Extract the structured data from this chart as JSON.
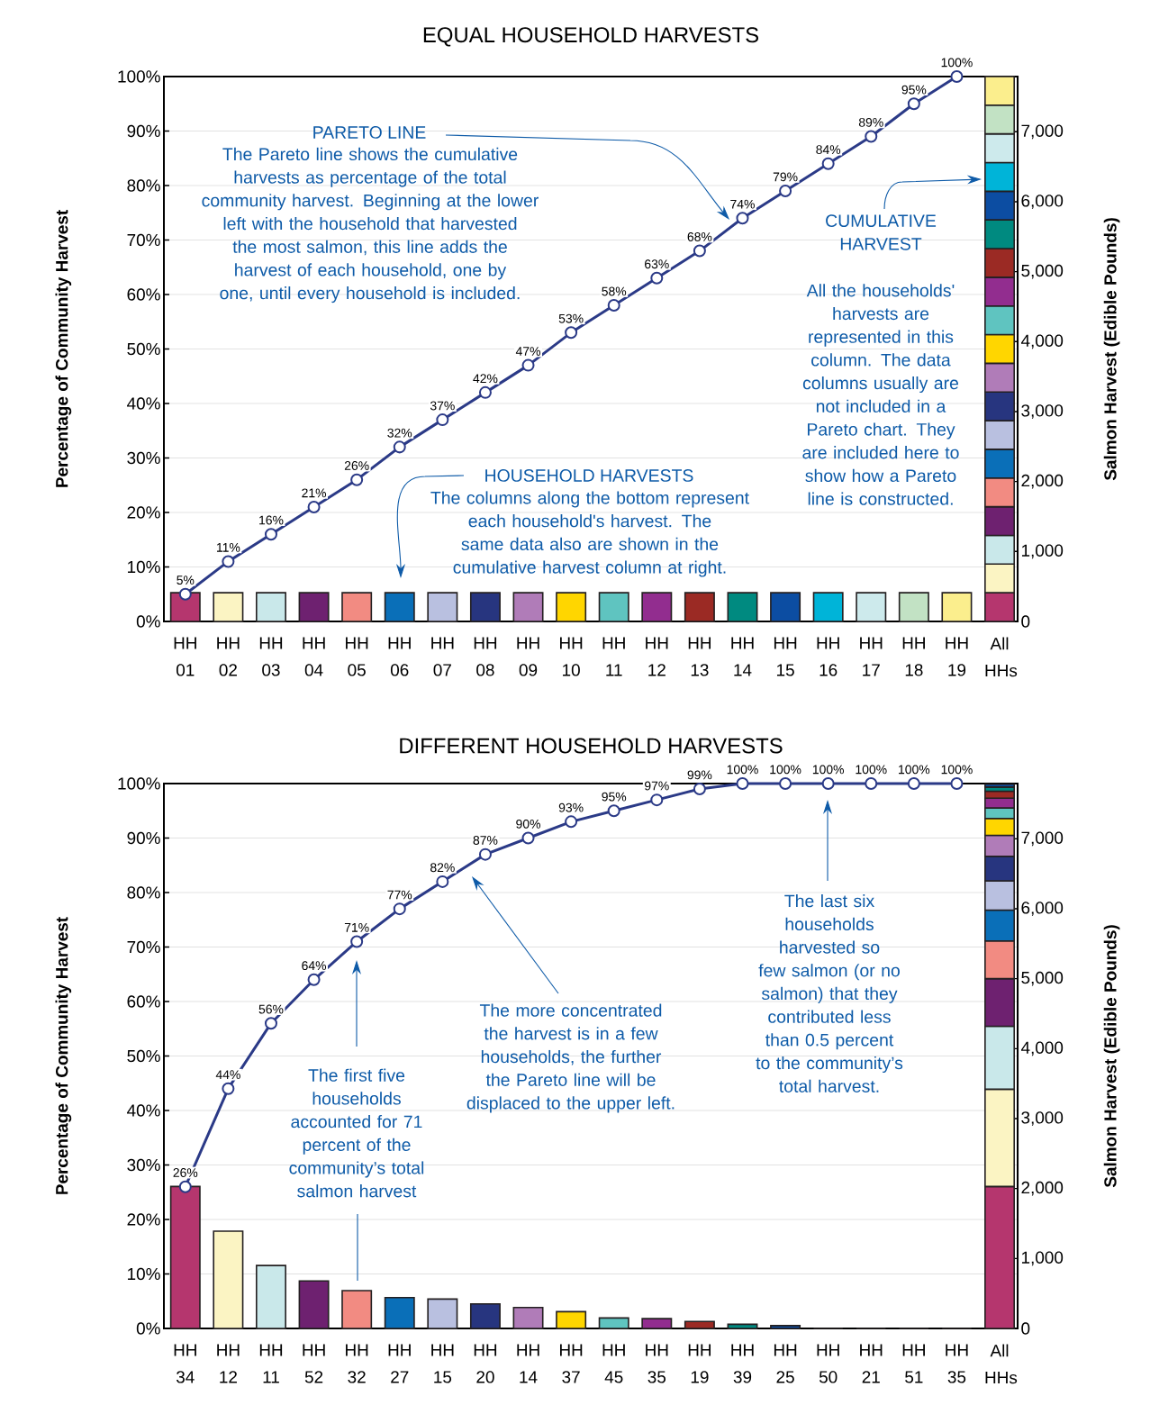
{
  "chart_data": [
    {
      "type": "bar",
      "title": "EQUAL HOUSEHOLD HARVESTS",
      "ylabel": "Percentage of Community Harvest",
      "y2label": "Salmon Harvest (Edible Pounds)",
      "categories": [
        "HH 01",
        "HH 02",
        "HH 03",
        "HH 04",
        "HH 05",
        "HH 06",
        "HH 07",
        "HH 08",
        "HH 09",
        "HH 10",
        "HH 11",
        "HH 12",
        "HH 13",
        "HH 14",
        "HH 15",
        "HH 16",
        "HH 17",
        "HH 18",
        "HH 19",
        "All HHs"
      ],
      "ylim": [
        0,
        100
      ],
      "yticks": [
        {
          "value": 0,
          "label": "0%"
        },
        {
          "value": 10,
          "label": "10%"
        },
        {
          "value": 20,
          "label": "20%"
        },
        {
          "value": 30,
          "label": "30%"
        },
        {
          "value": 40,
          "label": "40%"
        },
        {
          "value": 50,
          "label": "50%"
        },
        {
          "value": 60,
          "label": "60%"
        },
        {
          "value": 70,
          "label": "70%"
        },
        {
          "value": 80,
          "label": "80%"
        },
        {
          "value": 90,
          "label": "90%"
        },
        {
          "value": 100,
          "label": "100%"
        }
      ],
      "y2lim": [
        0,
        7790
      ],
      "y2ticks": [
        0,
        {
          "value": 1000,
          "label": "1,000"
        },
        {
          "value": 2000,
          "label": "2,000"
        },
        {
          "value": 3000,
          "label": "3,000"
        },
        {
          "value": 4000,
          "label": "4,000"
        },
        {
          "value": 5000,
          "label": "5,000"
        },
        {
          "value": 6000,
          "label": "6,000"
        },
        {
          "value": 7000,
          "label": "7,000"
        }
      ],
      "grid": "y",
      "stacked": true,
      "marker": "circle",
      "series": [
        {
          "axis": "y2",
          "values": [
            410,
            410,
            410,
            410,
            410,
            410,
            410,
            410,
            410,
            410,
            410,
            410,
            410,
            410,
            410,
            410,
            410,
            410,
            410,
            null
          ],
          "colors": [
            "#b5366e",
            "#fbf4c3",
            "#c9e8ea",
            "#6e2170",
            "#f28b82",
            "#0a6fb8",
            "#b9c0e0",
            "#27357f",
            "#b07cb8",
            "#ffd600",
            "#5fc4c0",
            "#922d8f",
            "#9b2a24",
            "#008a80",
            "#0c4da2",
            "#00b4d8",
            "#cdeaec",
            "#c2e2c4",
            "#fbee8d",
            null
          ]
        },
        {
          "axis": "y2",
          "color": "#b5366e",
          "values": [
            null,
            null,
            null,
            null,
            null,
            null,
            null,
            null,
            null,
            null,
            null,
            null,
            null,
            null,
            null,
            null,
            null,
            null,
            null,
            410
          ]
        },
        {
          "axis": "y2",
          "color": "#fbf4c3",
          "values": [
            null,
            null,
            null,
            null,
            null,
            null,
            null,
            null,
            null,
            null,
            null,
            null,
            null,
            null,
            null,
            null,
            null,
            null,
            null,
            410
          ]
        },
        {
          "axis": "y2",
          "color": "#c9e8ea",
          "values": [
            null,
            null,
            null,
            null,
            null,
            null,
            null,
            null,
            null,
            null,
            null,
            null,
            null,
            null,
            null,
            null,
            null,
            null,
            null,
            410
          ]
        },
        {
          "axis": "y2",
          "color": "#6e2170",
          "values": [
            null,
            null,
            null,
            null,
            null,
            null,
            null,
            null,
            null,
            null,
            null,
            null,
            null,
            null,
            null,
            null,
            null,
            null,
            null,
            410
          ]
        },
        {
          "axis": "y2",
          "color": "#f28b82",
          "values": [
            null,
            null,
            null,
            null,
            null,
            null,
            null,
            null,
            null,
            null,
            null,
            null,
            null,
            null,
            null,
            null,
            null,
            null,
            null,
            410
          ]
        },
        {
          "axis": "y2",
          "color": "#0a6fb8",
          "values": [
            null,
            null,
            null,
            null,
            null,
            null,
            null,
            null,
            null,
            null,
            null,
            null,
            null,
            null,
            null,
            null,
            null,
            null,
            null,
            410
          ]
        },
        {
          "axis": "y2",
          "color": "#b9c0e0",
          "values": [
            null,
            null,
            null,
            null,
            null,
            null,
            null,
            null,
            null,
            null,
            null,
            null,
            null,
            null,
            null,
            null,
            null,
            null,
            null,
            410
          ]
        },
        {
          "axis": "y2",
          "color": "#27357f",
          "values": [
            null,
            null,
            null,
            null,
            null,
            null,
            null,
            null,
            null,
            null,
            null,
            null,
            null,
            null,
            null,
            null,
            null,
            null,
            null,
            410
          ]
        },
        {
          "axis": "y2",
          "color": "#b07cb8",
          "values": [
            null,
            null,
            null,
            null,
            null,
            null,
            null,
            null,
            null,
            null,
            null,
            null,
            null,
            null,
            null,
            null,
            null,
            null,
            null,
            410
          ]
        },
        {
          "axis": "y2",
          "color": "#ffd600",
          "values": [
            null,
            null,
            null,
            null,
            null,
            null,
            null,
            null,
            null,
            null,
            null,
            null,
            null,
            null,
            null,
            null,
            null,
            null,
            null,
            410
          ]
        },
        {
          "axis": "y2",
          "color": "#5fc4c0",
          "values": [
            null,
            null,
            null,
            null,
            null,
            null,
            null,
            null,
            null,
            null,
            null,
            null,
            null,
            null,
            null,
            null,
            null,
            null,
            null,
            410
          ]
        },
        {
          "axis": "y2",
          "color": "#922d8f",
          "values": [
            null,
            null,
            null,
            null,
            null,
            null,
            null,
            null,
            null,
            null,
            null,
            null,
            null,
            null,
            null,
            null,
            null,
            null,
            null,
            410
          ]
        },
        {
          "axis": "y2",
          "color": "#9b2a24",
          "values": [
            null,
            null,
            null,
            null,
            null,
            null,
            null,
            null,
            null,
            null,
            null,
            null,
            null,
            null,
            null,
            null,
            null,
            null,
            null,
            410
          ]
        },
        {
          "axis": "y2",
          "color": "#008a80",
          "values": [
            null,
            null,
            null,
            null,
            null,
            null,
            null,
            null,
            null,
            null,
            null,
            null,
            null,
            null,
            null,
            null,
            null,
            null,
            null,
            410
          ]
        },
        {
          "axis": "y2",
          "color": "#0c4da2",
          "values": [
            null,
            null,
            null,
            null,
            null,
            null,
            null,
            null,
            null,
            null,
            null,
            null,
            null,
            null,
            null,
            null,
            null,
            null,
            null,
            410
          ]
        },
        {
          "axis": "y2",
          "color": "#00b4d8",
          "values": [
            null,
            null,
            null,
            null,
            null,
            null,
            null,
            null,
            null,
            null,
            null,
            null,
            null,
            null,
            null,
            null,
            null,
            null,
            null,
            410
          ]
        },
        {
          "axis": "y2",
          "color": "#cdeaec",
          "values": [
            null,
            null,
            null,
            null,
            null,
            null,
            null,
            null,
            null,
            null,
            null,
            null,
            null,
            null,
            null,
            null,
            null,
            null,
            null,
            410
          ]
        },
        {
          "axis": "y2",
          "color": "#c2e2c4",
          "values": [
            null,
            null,
            null,
            null,
            null,
            null,
            null,
            null,
            null,
            null,
            null,
            null,
            null,
            null,
            null,
            null,
            null,
            null,
            null,
            410
          ]
        },
        {
          "axis": "y2",
          "color": "#fbee8d",
          "values": [
            null,
            null,
            null,
            null,
            null,
            null,
            null,
            null,
            null,
            null,
            null,
            null,
            null,
            null,
            null,
            null,
            null,
            null,
            null,
            410
          ]
        },
        {
          "type": "line",
          "color": "#2b3a87",
          "values": [
            5,
            11,
            16,
            21,
            26,
            32,
            37,
            42,
            47,
            53,
            58,
            63,
            68,
            74,
            79,
            84,
            89,
            95,
            100,
            null
          ],
          "value_labels": [
            "5%",
            "11%",
            "16%",
            "21%",
            "26%",
            "32%",
            "37%",
            "42%",
            "47%",
            "53%",
            "58%",
            "63%",
            "68%",
            "74%",
            "79%",
            "84%",
            "89%",
            "95%",
            "100%",
            null
          ]
        }
      ],
      "annotations": [
        "PARETO LINE",
        "The Pareto line shows the cumulative harvests as percentage of the total community harvest. Beginning at the lower left with the household that harvested the most salmon, this line adds the harvest of each household, one by one, until every household is included.",
        "HOUSEHOLD HARVESTS",
        "The columns along the bottom represent each household's harvest. The same data also are shown in the cumulative harvest column at right.",
        "CUMULATIVE HARVEST",
        "All the households' harvests are represented in this column. The data columns usually are not included in a Pareto chart. They are included here to show how a Pareto line is constructed."
      ]
    },
    {
      "type": "bar",
      "title": "DIFFERENT HOUSEHOLD HARVESTS",
      "ylabel": "Percentage of Community Harvest",
      "y2label": "Salmon Harvest (Edible Pounds)",
      "categories": [
        "HH 34",
        "HH 12",
        "HH 11",
        "HH 52",
        "HH 32",
        "HH 27",
        "HH 15",
        "HH 20",
        "HH 14",
        "HH 37",
        "HH 45",
        "HH 35",
        "HH 19",
        "HH 39",
        "HH 25",
        "HH 50",
        "HH 21",
        "HH 51",
        "HH 35",
        "All HHs"
      ],
      "ylim": [
        0,
        100
      ],
      "yticks": [
        {
          "value": 0,
          "label": "0%"
        },
        {
          "value": 10,
          "label": "10%"
        },
        {
          "value": 20,
          "label": "20%"
        },
        {
          "value": 30,
          "label": "30%"
        },
        {
          "value": 40,
          "label": "40%"
        },
        {
          "value": 50,
          "label": "50%"
        },
        {
          "value": 60,
          "label": "60%"
        },
        {
          "value": 70,
          "label": "70%"
        },
        {
          "value": 80,
          "label": "80%"
        },
        {
          "value": 90,
          "label": "90%"
        },
        {
          "value": 100,
          "label": "100%"
        }
      ],
      "y2lim": [
        0,
        7790
      ],
      "y2ticks": [
        0,
        {
          "value": 1000,
          "label": "1,000"
        },
        {
          "value": 2000,
          "label": "2,000"
        },
        {
          "value": 3000,
          "label": "3,000"
        },
        {
          "value": 4000,
          "label": "4,000"
        },
        {
          "value": 5000,
          "label": "5,000"
        },
        {
          "value": 6000,
          "label": "6,000"
        },
        {
          "value": 7000,
          "label": "7,000"
        }
      ],
      "grid": "y",
      "stacked": true,
      "marker": "circle",
      "series": [
        {
          "axis": "y2",
          "values": [
            2030,
            1390,
            900,
            680,
            540,
            440,
            420,
            350,
            300,
            240,
            150,
            140,
            100,
            60,
            40,
            0,
            0,
            0,
            0,
            null
          ],
          "colors": [
            "#b5366e",
            "#fbf4c3",
            "#c9e8ea",
            "#6e2170",
            "#f28b82",
            "#0a6fb8",
            "#b9c0e0",
            "#27357f",
            "#b07cb8",
            "#ffd600",
            "#5fc4c0",
            "#922d8f",
            "#9b2a24",
            "#008a80",
            "#0c4da2",
            "#00b4d8",
            "#cdeaec",
            "#c2e2c4",
            "#fbee8d",
            null
          ]
        },
        {
          "axis": "y2",
          "color": "#b5366e",
          "values": [
            null,
            null,
            null,
            null,
            null,
            null,
            null,
            null,
            null,
            null,
            null,
            null,
            null,
            null,
            null,
            null,
            null,
            null,
            null,
            2030
          ]
        },
        {
          "axis": "y2",
          "color": "#fbf4c3",
          "values": [
            null,
            null,
            null,
            null,
            null,
            null,
            null,
            null,
            null,
            null,
            null,
            null,
            null,
            null,
            null,
            null,
            null,
            null,
            null,
            1390
          ]
        },
        {
          "axis": "y2",
          "color": "#c9e8ea",
          "values": [
            null,
            null,
            null,
            null,
            null,
            null,
            null,
            null,
            null,
            null,
            null,
            null,
            null,
            null,
            null,
            null,
            null,
            null,
            null,
            900
          ]
        },
        {
          "axis": "y2",
          "color": "#6e2170",
          "values": [
            null,
            null,
            null,
            null,
            null,
            null,
            null,
            null,
            null,
            null,
            null,
            null,
            null,
            null,
            null,
            null,
            null,
            null,
            null,
            680
          ]
        },
        {
          "axis": "y2",
          "color": "#f28b82",
          "values": [
            null,
            null,
            null,
            null,
            null,
            null,
            null,
            null,
            null,
            null,
            null,
            null,
            null,
            null,
            null,
            null,
            null,
            null,
            null,
            540
          ]
        },
        {
          "axis": "y2",
          "color": "#0a6fb8",
          "values": [
            null,
            null,
            null,
            null,
            null,
            null,
            null,
            null,
            null,
            null,
            null,
            null,
            null,
            null,
            null,
            null,
            null,
            null,
            null,
            440
          ]
        },
        {
          "axis": "y2",
          "color": "#b9c0e0",
          "values": [
            null,
            null,
            null,
            null,
            null,
            null,
            null,
            null,
            null,
            null,
            null,
            null,
            null,
            null,
            null,
            null,
            null,
            null,
            null,
            420
          ]
        },
        {
          "axis": "y2",
          "color": "#27357f",
          "values": [
            null,
            null,
            null,
            null,
            null,
            null,
            null,
            null,
            null,
            null,
            null,
            null,
            null,
            null,
            null,
            null,
            null,
            null,
            null,
            350
          ]
        },
        {
          "axis": "y2",
          "color": "#b07cb8",
          "values": [
            null,
            null,
            null,
            null,
            null,
            null,
            null,
            null,
            null,
            null,
            null,
            null,
            null,
            null,
            null,
            null,
            null,
            null,
            null,
            300
          ]
        },
        {
          "axis": "y2",
          "color": "#ffd600",
          "values": [
            null,
            null,
            null,
            null,
            null,
            null,
            null,
            null,
            null,
            null,
            null,
            null,
            null,
            null,
            null,
            null,
            null,
            null,
            null,
            240
          ]
        },
        {
          "axis": "y2",
          "color": "#5fc4c0",
          "values": [
            null,
            null,
            null,
            null,
            null,
            null,
            null,
            null,
            null,
            null,
            null,
            null,
            null,
            null,
            null,
            null,
            null,
            null,
            null,
            150
          ]
        },
        {
          "axis": "y2",
          "color": "#922d8f",
          "values": [
            null,
            null,
            null,
            null,
            null,
            null,
            null,
            null,
            null,
            null,
            null,
            null,
            null,
            null,
            null,
            null,
            null,
            null,
            null,
            140
          ]
        },
        {
          "axis": "y2",
          "color": "#9b2a24",
          "values": [
            null,
            null,
            null,
            null,
            null,
            null,
            null,
            null,
            null,
            null,
            null,
            null,
            null,
            null,
            null,
            null,
            null,
            null,
            null,
            100
          ]
        },
        {
          "axis": "y2",
          "color": "#008a80",
          "values": [
            null,
            null,
            null,
            null,
            null,
            null,
            null,
            null,
            null,
            null,
            null,
            null,
            null,
            null,
            null,
            null,
            null,
            null,
            null,
            60
          ]
        },
        {
          "axis": "y2",
          "color": "#0c4da2",
          "values": [
            null,
            null,
            null,
            null,
            null,
            null,
            null,
            null,
            null,
            null,
            null,
            null,
            null,
            null,
            null,
            null,
            null,
            null,
            null,
            40
          ]
        },
        {
          "type": "line",
          "color": "#2b3a87",
          "values": [
            26,
            44,
            56,
            64,
            71,
            77,
            82,
            87,
            90,
            93,
            95,
            97,
            99,
            100,
            100,
            100,
            100,
            100,
            100,
            null
          ],
          "value_labels": [
            "26%",
            "44%",
            "56%",
            "64%",
            "71%",
            "77%",
            "82%",
            "87%",
            "90%",
            "93%",
            "95%",
            "97%",
            "99%",
            "100%",
            "100%",
            "100%",
            "100%",
            "100%",
            "100%",
            null
          ]
        }
      ],
      "annotations": [
        "The first five households accounted for 71 percent of the community’s total salmon harvest",
        "The more concentrated the harvest is in a few households, the further the Pareto line will be displaced to the upper left.",
        "The last six households harvested so few salmon (or no salmon) that they contributed less than 0.5 percent to the community’s total harvest."
      ]
    }
  ]
}
